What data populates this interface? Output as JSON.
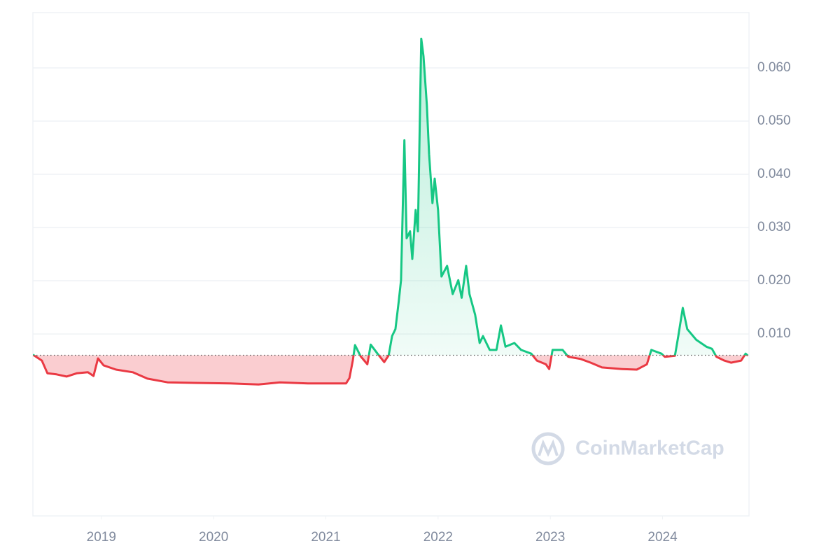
{
  "chart_data": {
    "type": "line",
    "watermark": "CoinMarketCap",
    "up_color": "#16c784",
    "down_color": "#ea3943",
    "baseline": 0.006,
    "xlim": [
      2018.39,
      2024.77
    ],
    "xticks": [
      2019,
      2020,
      2021,
      2022,
      2023,
      2024
    ],
    "ylim": [
      -0.0242,
      0.0704
    ],
    "yticks": [
      {
        "value": 0.01,
        "label": "0.010"
      },
      {
        "value": 0.02,
        "label": "0.020"
      },
      {
        "value": 0.03,
        "label": "0.030"
      },
      {
        "value": 0.04,
        "label": "0.040"
      },
      {
        "value": 0.05,
        "label": "0.050"
      },
      {
        "value": 0.06,
        "label": "0.060"
      }
    ],
    "grid": true,
    "x": [
      2018.39,
      2018.47,
      2018.52,
      2018.6,
      2018.69,
      2018.78,
      2018.88,
      2018.93,
      2018.97,
      2019.02,
      2019.13,
      2019.28,
      2019.41,
      2019.59,
      2019.84,
      2020.15,
      2020.4,
      2020.59,
      2020.84,
      2021.18,
      2021.21,
      2021.24,
      2021.26,
      2021.31,
      2021.37,
      2021.4,
      2021.46,
      2021.52,
      2021.56,
      2021.59,
      2021.62,
      2021.65,
      2021.67,
      2021.7,
      2021.72,
      2021.75,
      2021.77,
      2021.8,
      2021.82,
      2021.85,
      2021.87,
      2021.9,
      2021.92,
      2021.95,
      2021.97,
      2022.0,
      2022.03,
      2022.08,
      2022.13,
      2022.18,
      2022.21,
      2022.25,
      2022.28,
      2022.33,
      2022.37,
      2022.4,
      2022.46,
      2022.52,
      2022.56,
      2022.6,
      2022.68,
      2022.74,
      2022.83,
      2022.88,
      2022.96,
      2022.99,
      2023.02,
      2023.11,
      2023.16,
      2023.27,
      2023.36,
      2023.46,
      2023.64,
      2023.77,
      2023.86,
      2023.9,
      2023.99,
      2024.02,
      2024.11,
      2024.14,
      2024.18,
      2024.22,
      2024.3,
      2024.39,
      2024.44,
      2024.48,
      2024.55,
      2024.61,
      2024.7,
      2024.74,
      2024.76
    ],
    "values": [
      0.0061,
      0.005,
      0.0026,
      0.0024,
      0.002,
      0.0026,
      0.0028,
      0.0021,
      0.0054,
      0.0041,
      0.0033,
      0.0028,
      0.0016,
      0.0009,
      0.0008,
      0.0007,
      0.0005,
      0.0009,
      0.0007,
      0.0007,
      0.0017,
      0.005,
      0.0079,
      0.0058,
      0.0043,
      0.008,
      0.0063,
      0.0047,
      0.006,
      0.0096,
      0.0109,
      0.0162,
      0.0201,
      0.0464,
      0.028,
      0.0293,
      0.0241,
      0.0333,
      0.0293,
      0.0655,
      0.0622,
      0.053,
      0.0438,
      0.0346,
      0.0392,
      0.0333,
      0.0208,
      0.0228,
      0.0175,
      0.0201,
      0.0168,
      0.0228,
      0.0175,
      0.0136,
      0.0083,
      0.0096,
      0.007,
      0.007,
      0.0116,
      0.0076,
      0.0083,
      0.007,
      0.0063,
      0.005,
      0.0043,
      0.0034,
      0.007,
      0.007,
      0.0057,
      0.0053,
      0.0046,
      0.0037,
      0.0034,
      0.0033,
      0.0043,
      0.007,
      0.0063,
      0.0057,
      0.0059,
      0.0096,
      0.0149,
      0.0109,
      0.0089,
      0.0076,
      0.0072,
      0.0057,
      0.005,
      0.0046,
      0.005,
      0.0063,
      0.0059
    ]
  }
}
